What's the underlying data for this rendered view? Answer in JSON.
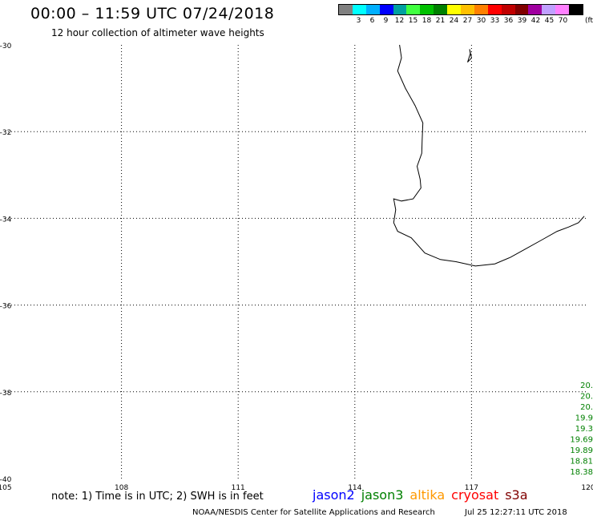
{
  "title": "00:00 – 11:59 UTC 07/24/2018",
  "subtitle": "12 hour collection of altimeter wave heights",
  "colorbar": {
    "colors": [
      "#808080",
      "#00ffff",
      "#00b0ff",
      "#0000ff",
      "#00a0a0",
      "#40ff40",
      "#00c000",
      "#008000",
      "#ffff00",
      "#ffc000",
      "#ff8000",
      "#ff0000",
      "#c00000",
      "#800000",
      "#a000a0",
      "#c0a0ff",
      "#ff80ff",
      "#000000"
    ],
    "labels": [
      "3",
      "6",
      "9",
      "12",
      "15",
      "18",
      "21",
      "24",
      "27",
      "30",
      "33",
      "36",
      "39",
      "42",
      "45",
      "70"
    ],
    "unit": "(ft)"
  },
  "axes": {
    "lon_min": 105,
    "lon_max": 120,
    "lat_min": -40,
    "lat_max": -30,
    "lon_ticks": [
      {
        "value": 105,
        "label": "105"
      },
      {
        "value": 108,
        "label": "108"
      },
      {
        "value": 111,
        "label": "111"
      },
      {
        "value": 114,
        "label": "114"
      },
      {
        "value": 117,
        "label": "117"
      },
      {
        "value": 120,
        "label": "120"
      }
    ],
    "lat_ticks": [
      {
        "value": -30,
        "label": "-30"
      },
      {
        "value": -32,
        "label": "-32"
      },
      {
        "value": -34,
        "label": "-34"
      },
      {
        "value": -36,
        "label": "-36"
      },
      {
        "value": -38,
        "label": "-38"
      },
      {
        "value": -40,
        "label": "-40"
      }
    ]
  },
  "coastline": [
    [
      115.15,
      -30.0
    ],
    [
      115.2,
      -30.3
    ],
    [
      115.1,
      -30.6
    ],
    [
      115.3,
      -31.0
    ],
    [
      115.55,
      -31.4
    ],
    [
      115.75,
      -31.8
    ],
    [
      115.73,
      -32.2
    ],
    [
      115.72,
      -32.5
    ],
    [
      115.6,
      -32.8
    ],
    [
      115.68,
      -33.1
    ],
    [
      115.7,
      -33.3
    ],
    [
      115.5,
      -33.55
    ],
    [
      115.2,
      -33.6
    ],
    [
      115.0,
      -33.55
    ],
    [
      115.05,
      -33.8
    ],
    [
      115.0,
      -34.1
    ],
    [
      115.1,
      -34.3
    ],
    [
      115.45,
      -34.45
    ],
    [
      115.8,
      -34.8
    ],
    [
      116.2,
      -34.95
    ],
    [
      116.6,
      -35.0
    ],
    [
      117.1,
      -35.1
    ],
    [
      117.6,
      -35.05
    ],
    [
      118.0,
      -34.9
    ],
    [
      118.4,
      -34.7
    ],
    [
      118.8,
      -34.5
    ],
    [
      119.2,
      -34.3
    ],
    [
      119.5,
      -34.2
    ],
    [
      119.75,
      -34.1
    ],
    [
      119.9,
      -33.95
    ]
  ],
  "island": [
    [
      116.95,
      -30.1
    ],
    [
      117.0,
      -30.3
    ],
    [
      116.9,
      -30.4
    ],
    [
      116.97,
      -30.2
    ]
  ],
  "track_labels": [
    "20.",
    "20.",
    "20.",
    "19.9",
    "19.3",
    "19.69",
    "19.89",
    "18.81",
    "18.38"
  ],
  "note": "note: 1) Time is in UTC; 2) SWH is in feet",
  "legend": [
    {
      "name": "jason2",
      "color": "#0000ff"
    },
    {
      "name": "jason3",
      "color": "#008000"
    },
    {
      "name": "altika",
      "color": "#ff9900"
    },
    {
      "name": "cryosat",
      "color": "#ff0000"
    },
    {
      "name": "s3a",
      "color": "#800000"
    }
  ],
  "footer": {
    "org": "NOAA/NESDIS Center for Satellite Applications and Research",
    "timestamp": "Jul 25 12:27:11 UTC 2018"
  }
}
